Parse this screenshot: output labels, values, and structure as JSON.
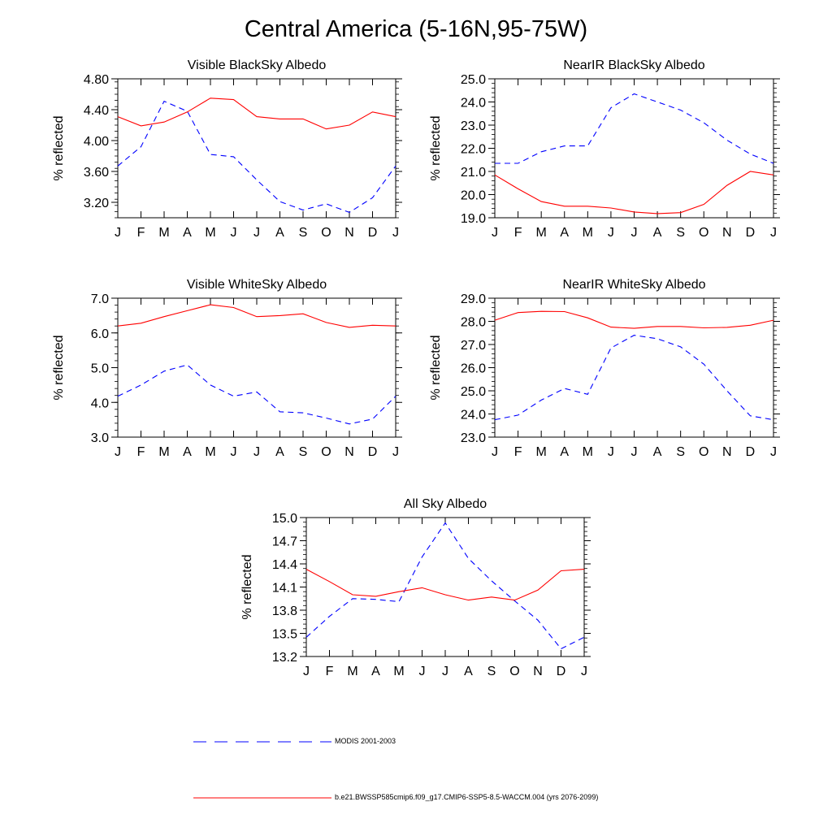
{
  "figure": {
    "title": "Central America (5-16N,95-75W)"
  },
  "legend": [
    {
      "label": "MODIS 2001-2003",
      "color": "#0000ff",
      "dash": "dashed"
    },
    {
      "label": "b.e21.BWSSP585cmip6.f09_g17.CMIP6-SSP5-8.5-WACCM.004 (yrs 2076-2099)",
      "color": "#ff0000",
      "dash": "solid"
    }
  ],
  "chart_data": [
    {
      "type": "line",
      "title": "Visible BlackSky Albedo",
      "ylabel": "% reflected",
      "xlabel": "",
      "categories": [
        "J",
        "F",
        "M",
        "A",
        "M",
        "J",
        "J",
        "A",
        "S",
        "O",
        "N",
        "D",
        "J"
      ],
      "ylim": [
        3.0,
        4.8
      ],
      "yticks": [
        "3.20",
        "3.60",
        "4.00",
        "4.40",
        "4.80"
      ],
      "series": [
        {
          "name": "MODIS 2001-2003",
          "color": "#0000ff",
          "dash": "dashed",
          "values": [
            3.67,
            3.92,
            4.51,
            4.38,
            3.82,
            3.79,
            3.49,
            3.21,
            3.1,
            3.18,
            3.07,
            3.26,
            3.67
          ]
        },
        {
          "name": "b.e21.BWSSP585cmip6.f09_g17.CMIP6-SSP5-8.5-WACCM.004 (yrs 2076-2099)",
          "color": "#ff0000",
          "dash": "solid",
          "values": [
            4.31,
            4.19,
            4.24,
            4.37,
            4.55,
            4.53,
            4.31,
            4.28,
            4.28,
            4.15,
            4.2,
            4.37,
            4.31
          ]
        }
      ]
    },
    {
      "type": "line",
      "title": "NearIR BlackSky Albedo",
      "ylabel": "% reflected",
      "xlabel": "",
      "categories": [
        "J",
        "F",
        "M",
        "A",
        "M",
        "J",
        "J",
        "A",
        "S",
        "O",
        "N",
        "D",
        "J"
      ],
      "ylim": [
        19.0,
        25.0
      ],
      "yticks": [
        "19.0",
        "20.0",
        "21.0",
        "22.0",
        "23.0",
        "24.0",
        "25.0"
      ],
      "series": [
        {
          "name": "MODIS 2001-2003",
          "color": "#0000ff",
          "dash": "dashed",
          "values": [
            21.35,
            21.35,
            21.85,
            22.1,
            22.1,
            23.75,
            24.35,
            24.0,
            23.65,
            23.1,
            22.35,
            21.75,
            21.35
          ]
        },
        {
          "name": "b.e21.BWSSP585cmip6.f09_g17.CMIP6-SSP5-8.5-WACCM.004 (yrs 2076-2099)",
          "color": "#ff0000",
          "dash": "solid",
          "values": [
            20.85,
            20.25,
            19.7,
            19.5,
            19.5,
            19.42,
            19.25,
            19.18,
            19.22,
            19.58,
            20.4,
            21.0,
            20.85
          ]
        }
      ]
    },
    {
      "type": "line",
      "title": "Visible WhiteSky Albedo",
      "ylabel": "% reflected",
      "xlabel": "",
      "categories": [
        "J",
        "F",
        "M",
        "A",
        "M",
        "J",
        "J",
        "A",
        "S",
        "O",
        "N",
        "D",
        "J"
      ],
      "ylim": [
        3.0,
        7.0
      ],
      "yticks": [
        "3.0",
        "4.0",
        "5.0",
        "6.0",
        "7.0"
      ],
      "series": [
        {
          "name": "MODIS 2001-2003",
          "color": "#0000ff",
          "dash": "dashed",
          "values": [
            4.18,
            4.5,
            4.9,
            5.08,
            4.5,
            4.18,
            4.3,
            3.73,
            3.7,
            3.55,
            3.38,
            3.52,
            4.18
          ]
        },
        {
          "name": "b.e21.BWSSP585cmip6.f09_g17.CMIP6-SSP5-8.5-WACCM.004 (yrs 2076-2099)",
          "color": "#ff0000",
          "dash": "solid",
          "values": [
            6.2,
            6.28,
            6.47,
            6.64,
            6.81,
            6.73,
            6.47,
            6.5,
            6.55,
            6.3,
            6.16,
            6.22,
            6.2
          ]
        }
      ]
    },
    {
      "type": "line",
      "title": "NearIR WhiteSky Albedo",
      "ylabel": "% reflected",
      "xlabel": "",
      "categories": [
        "J",
        "F",
        "M",
        "A",
        "M",
        "J",
        "J",
        "A",
        "S",
        "O",
        "N",
        "D",
        "J"
      ],
      "ylim": [
        23.0,
        29.0
      ],
      "yticks": [
        "23.0",
        "24.0",
        "25.0",
        "26.0",
        "27.0",
        "28.0",
        "29.0"
      ],
      "series": [
        {
          "name": "MODIS 2001-2003",
          "color": "#0000ff",
          "dash": "dashed",
          "values": [
            23.75,
            23.95,
            24.6,
            25.1,
            24.85,
            26.85,
            27.4,
            27.25,
            26.9,
            26.15,
            25.0,
            23.92,
            23.75
          ]
        },
        {
          "name": "b.e21.BWSSP585cmip6.f09_g17.CMIP6-SSP5-8.5-WACCM.004 (yrs 2076-2099)",
          "color": "#ff0000",
          "dash": "solid",
          "values": [
            28.05,
            28.38,
            28.43,
            28.42,
            28.15,
            27.75,
            27.7,
            27.78,
            27.78,
            27.72,
            27.74,
            27.83,
            28.05
          ]
        }
      ]
    },
    {
      "type": "line",
      "title": "All Sky Albedo",
      "ylabel": "% reflected",
      "xlabel": "",
      "categories": [
        "J",
        "F",
        "M",
        "A",
        "M",
        "J",
        "J",
        "A",
        "S",
        "O",
        "N",
        "D",
        "J"
      ],
      "ylim": [
        13.2,
        15.0
      ],
      "yticks": [
        "13.2",
        "13.5",
        "13.8",
        "14.1",
        "14.4",
        "14.7",
        "15.0"
      ],
      "series": [
        {
          "name": "MODIS 2001-2003",
          "color": "#0000ff",
          "dash": "dashed",
          "values": [
            13.45,
            13.72,
            13.95,
            13.94,
            13.91,
            14.49,
            14.93,
            14.47,
            14.18,
            13.92,
            13.67,
            13.3,
            13.45
          ]
        },
        {
          "name": "b.e21.BWSSP585cmip6.f09_g17.CMIP6-SSP5-8.5-WACCM.004 (yrs 2076-2099)",
          "color": "#ff0000",
          "dash": "solid",
          "values": [
            14.33,
            14.17,
            14.0,
            13.98,
            14.04,
            14.09,
            14.0,
            13.93,
            13.97,
            13.93,
            14.06,
            14.31,
            14.33
          ]
        }
      ]
    }
  ]
}
